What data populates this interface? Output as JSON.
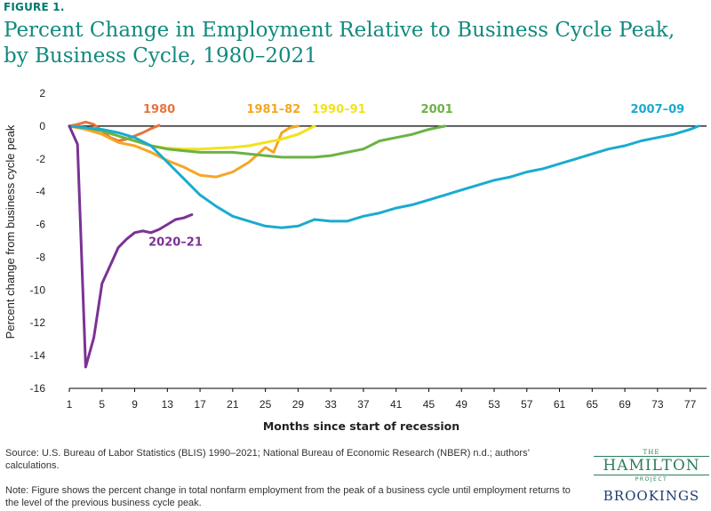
{
  "figure_label": "FIGURE 1.",
  "title": "Percent Change in Employment Relative to Business Cycle Peak, by Business Cycle, 1980–2021",
  "source": "Source:  U.S. Bureau of Labor Statistics (BLIS) 1990–2021; National Bureau of Economic Research (NBER) n.d.; authors’ calculations.",
  "note": "Note: Figure shows the percent change in total nonfarm employment from the peak of a business cycle until employment returns to the level of the previous business cycle peak.",
  "logo": {
    "the": "THE",
    "hamilton": "HAMILTON",
    "project": "PROJECT",
    "brookings": "BROOKINGS"
  },
  "chart_data": {
    "type": "line",
    "xlabel": "Months since start of recession",
    "ylabel": "Percent change from business cycle peak",
    "xlim": [
      1,
      79
    ],
    "ylim": [
      -16,
      2
    ],
    "xticks": [
      1,
      5,
      9,
      13,
      17,
      21,
      25,
      29,
      33,
      37,
      41,
      45,
      49,
      53,
      57,
      61,
      65,
      69,
      73,
      77
    ],
    "yticks": [
      2,
      0,
      -2,
      -4,
      -6,
      -8,
      -10,
      -12,
      -14,
      -16
    ],
    "grid": false,
    "series": [
      {
        "name": "1980",
        "color": "#e8743b",
        "x": [
          1,
          2,
          3,
          4,
          5,
          6,
          7,
          8,
          9,
          10,
          11,
          12
        ],
        "y": [
          0,
          0.1,
          0.25,
          0.1,
          -0.3,
          -0.7,
          -0.9,
          -0.8,
          -0.6,
          -0.4,
          -0.15,
          0.05
        ],
        "label_x": 12,
        "label_y": 0.8
      },
      {
        "name": "1981–82",
        "color": "#f5a623",
        "x": [
          1,
          3,
          5,
          7,
          9,
          11,
          13,
          15,
          17,
          19,
          21,
          23,
          25,
          26,
          27,
          28,
          29
        ],
        "y": [
          0,
          -0.2,
          -0.5,
          -1.0,
          -1.2,
          -1.6,
          -2.1,
          -2.5,
          -3.0,
          -3.1,
          -2.8,
          -2.2,
          -1.3,
          -1.6,
          -0.4,
          -0.1,
          0
        ],
        "label_x": 26,
        "label_y": 0.8
      },
      {
        "name": "1990–91",
        "color": "#f2e21b",
        "x": [
          1,
          3,
          5,
          7,
          9,
          11,
          13,
          15,
          17,
          19,
          21,
          23,
          25,
          27,
          29,
          30,
          31
        ],
        "y": [
          0,
          -0.1,
          -0.3,
          -0.6,
          -0.9,
          -1.2,
          -1.35,
          -1.4,
          -1.4,
          -1.35,
          -1.3,
          -1.2,
          -1.0,
          -0.8,
          -0.5,
          -0.25,
          0
        ],
        "label_x": 34,
        "label_y": 0.8
      },
      {
        "name": "2001",
        "color": "#6ab344",
        "x": [
          1,
          3,
          5,
          7,
          9,
          11,
          13,
          15,
          17,
          19,
          21,
          23,
          25,
          27,
          29,
          31,
          33,
          35,
          37,
          39,
          41,
          43,
          45,
          46,
          47
        ],
        "y": [
          0,
          -0.1,
          -0.3,
          -0.6,
          -0.9,
          -1.2,
          -1.4,
          -1.5,
          -1.6,
          -1.6,
          -1.6,
          -1.7,
          -1.8,
          -1.9,
          -1.9,
          -1.9,
          -1.8,
          -1.6,
          -1.4,
          -0.9,
          -0.7,
          -0.5,
          -0.2,
          -0.1,
          0
        ],
        "label_x": 46,
        "label_y": 0.8
      },
      {
        "name": "2007–09",
        "color": "#1aabcf",
        "x": [
          1,
          3,
          5,
          7,
          9,
          11,
          13,
          15,
          17,
          19,
          21,
          23,
          25,
          27,
          29,
          31,
          33,
          35,
          37,
          39,
          41,
          43,
          45,
          47,
          49,
          51,
          53,
          55,
          57,
          59,
          61,
          63,
          65,
          67,
          69,
          71,
          73,
          75,
          77,
          78
        ],
        "y": [
          0,
          -0.1,
          -0.2,
          -0.4,
          -0.7,
          -1.2,
          -2.2,
          -3.2,
          -4.2,
          -4.9,
          -5.5,
          -5.8,
          -6.1,
          -6.2,
          -6.1,
          -5.7,
          -5.8,
          -5.8,
          -5.5,
          -5.3,
          -5.0,
          -4.8,
          -4.5,
          -4.2,
          -3.9,
          -3.6,
          -3.3,
          -3.1,
          -2.8,
          -2.6,
          -2.3,
          -2.0,
          -1.7,
          -1.4,
          -1.2,
          -0.9,
          -0.7,
          -0.5,
          -0.2,
          0
        ],
        "label_x": 73,
        "label_y": 0.8
      },
      {
        "name": "2020–21",
        "color": "#7b3294",
        "x": [
          1,
          2,
          3,
          4,
          5,
          6,
          7,
          8,
          9,
          10,
          11,
          12,
          13,
          14,
          15,
          16
        ],
        "y": [
          0,
          -1.1,
          -14.7,
          -12.9,
          -9.6,
          -8.5,
          -7.4,
          -6.9,
          -6.5,
          -6.4,
          -6.5,
          -6.3,
          -6.0,
          -5.7,
          -5.6,
          -5.4
        ],
        "label_x": 14,
        "label_y": -7.3
      }
    ]
  }
}
